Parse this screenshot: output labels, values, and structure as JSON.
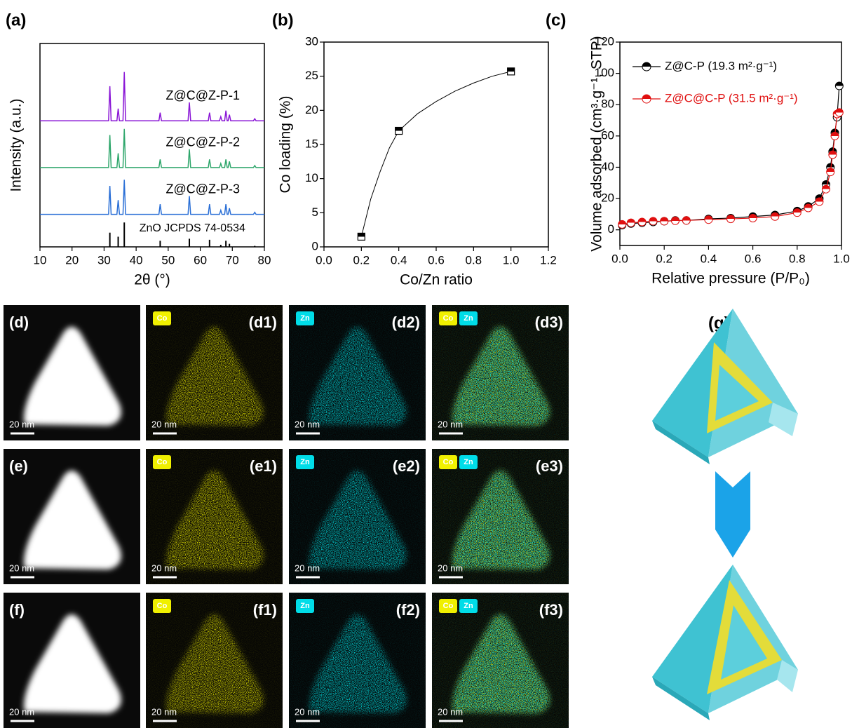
{
  "chart_data": [
    {
      "type": "line",
      "panel": "(a)",
      "x_label": "2θ (°)",
      "y_label": "Intensity (a.u.)",
      "xlim": [
        10,
        80
      ],
      "xticks": [
        10,
        20,
        30,
        40,
        50,
        60,
        70,
        80
      ],
      "ylim": [
        0,
        100
      ],
      "x": [
        10,
        31.4,
        31.8,
        32.2,
        34.0,
        34.4,
        34.8,
        35.9,
        36.3,
        36.7,
        47.1,
        47.5,
        47.9,
        56.2,
        56.6,
        57.0,
        62.5,
        62.9,
        63.3,
        66.0,
        66.4,
        66.8,
        67.6,
        68.0,
        68.4,
        68.7,
        69.1,
        69.5,
        76.6,
        77.0,
        77.4,
        80
      ],
      "series": [
        {
          "name": "Z@C@Z-P-1",
          "color": "#8a16d6",
          "values": [
            62,
            62,
            79,
            62,
            62,
            68,
            62,
            62,
            86,
            62,
            62,
            66,
            62,
            62,
            71,
            62,
            62,
            66,
            62,
            62,
            64,
            62,
            62,
            67,
            62,
            62,
            65,
            62,
            62,
            63,
            62,
            62
          ]
        },
        {
          "name": "Z@C@Z-P-2",
          "color": "#2ea66b",
          "values": [
            39,
            39,
            55,
            39,
            39,
            46,
            39,
            39,
            58,
            39,
            39,
            43,
            39,
            39,
            48,
            39,
            39,
            43,
            39,
            39,
            41,
            39,
            39,
            43,
            39,
            39,
            42,
            39,
            39,
            40,
            39,
            39
          ]
        },
        {
          "name": "Z@C@Z-P-3",
          "color": "#2a6fd6",
          "values": [
            16,
            16,
            30,
            16,
            16,
            23,
            16,
            16,
            33,
            16,
            16,
            21,
            16,
            16,
            25,
            16,
            16,
            21,
            16,
            16,
            18,
            16,
            16,
            21,
            16,
            16,
            19,
            16,
            16,
            17,
            16,
            16
          ]
        }
      ],
      "reference": {
        "name": "ZnO JCPDS 74-0534",
        "color": "#000000",
        "x": [
          31.8,
          34.4,
          36.3,
          47.5,
          56.6,
          62.9,
          66.4,
          68.0,
          69.1,
          77.0
        ],
        "values": [
          7,
          5,
          12,
          3,
          4,
          3.5,
          1,
          3,
          1.5,
          0.5
        ]
      }
    },
    {
      "type": "scatter",
      "panel": "(b)",
      "x_label": "Co/Zn ratio",
      "y_label": "Co loading (%)",
      "xlim": [
        0,
        1.2
      ],
      "xticks": [
        {
          "value": 0,
          "label": "0.0"
        },
        0.2,
        0.4,
        0.6,
        0.8,
        {
          "value": 1,
          "label": "1.0"
        },
        1.2
      ],
      "ylim": [
        0,
        30
      ],
      "yticks": [
        0,
        5,
        10,
        15,
        20,
        25,
        30
      ],
      "x": [
        0.2,
        0.4,
        1.0
      ],
      "values": [
        1.5,
        17,
        25.7
      ],
      "color": "#000000",
      "fit": {
        "x": [
          0.2,
          0.25,
          0.3,
          0.35,
          0.4,
          0.5,
          0.6,
          0.7,
          0.8,
          0.9,
          1.0
        ],
        "values": [
          1.5,
          7,
          11,
          14.5,
          17,
          19.5,
          21.3,
          22.8,
          24,
          25,
          25.7
        ]
      }
    },
    {
      "type": "scatter",
      "panel": "(c)",
      "x_label": "Relative pressure (P/P₀)",
      "y_label": "Volume adsorbed (cm³·g⁻¹, STP)",
      "xlim": [
        0,
        1
      ],
      "xticks": [
        {
          "value": 0,
          "label": "0.0"
        },
        0.2,
        0.4,
        0.6,
        0.8,
        {
          "value": 1,
          "label": "1.0"
        }
      ],
      "ylim": [
        -10,
        120
      ],
      "yticks": [
        0,
        20,
        40,
        60,
        80,
        100,
        120
      ],
      "legend": "upper left",
      "series": [
        {
          "name": "Z@C-P (19.3 m²·g⁻¹)",
          "color": "#000000",
          "x": [
            0.01,
            0.05,
            0.1,
            0.15,
            0.2,
            0.25,
            0.3,
            0.4,
            0.5,
            0.6,
            0.7,
            0.8,
            0.85,
            0.9,
            0.93,
            0.95,
            0.96,
            0.97,
            0.98,
            0.99
          ],
          "values": [
            3,
            4,
            4.5,
            5,
            5.5,
            6,
            6,
            7,
            7.5,
            8.5,
            9.5,
            12,
            15,
            20,
            29,
            40,
            50,
            62,
            72,
            92
          ]
        },
        {
          "name": "Z@C@C-P (31.5 m²·g⁻¹)",
          "color": "#e01010",
          "x": [
            0.01,
            0.05,
            0.1,
            0.15,
            0.2,
            0.25,
            0.3,
            0.4,
            0.5,
            0.6,
            0.7,
            0.8,
            0.85,
            0.9,
            0.93,
            0.95,
            0.96,
            0.97,
            0.98,
            0.99
          ],
          "values": [
            3.5,
            4.5,
            5,
            5.5,
            5.5,
            5.8,
            6,
            6.5,
            7,
            7.5,
            8.5,
            11,
            14,
            18,
            26,
            37,
            48,
            60,
            74,
            75
          ]
        }
      ]
    }
  ],
  "micrographs": {
    "scale_bar": "20 nm",
    "tag_colors": {
      "Co": "#f0f000",
      "Zn": "#00dde8"
    },
    "rows": [
      {
        "label": "(d)",
        "maps": [
          {
            "label": "(d1)",
            "tags": [
              "Co"
            ]
          },
          {
            "label": "(d2)",
            "tags": [
              "Zn"
            ]
          },
          {
            "label": "(d3)",
            "tags": [
              "Co",
              "Zn"
            ]
          }
        ]
      },
      {
        "label": "(e)",
        "maps": [
          {
            "label": "(e1)",
            "tags": [
              "Co"
            ]
          },
          {
            "label": "(e2)",
            "tags": [
              "Zn"
            ]
          },
          {
            "label": "(e3)",
            "tags": [
              "Co",
              "Zn"
            ]
          }
        ]
      },
      {
        "label": "(f)",
        "maps": [
          {
            "label": "(f1)",
            "tags": [
              "Co"
            ]
          },
          {
            "label": "(f2)",
            "tags": [
              "Zn"
            ]
          },
          {
            "label": "(f3)",
            "tags": [
              "Co",
              "Zn"
            ]
          }
        ]
      }
    ]
  },
  "schematic": {
    "label": "(g)"
  }
}
